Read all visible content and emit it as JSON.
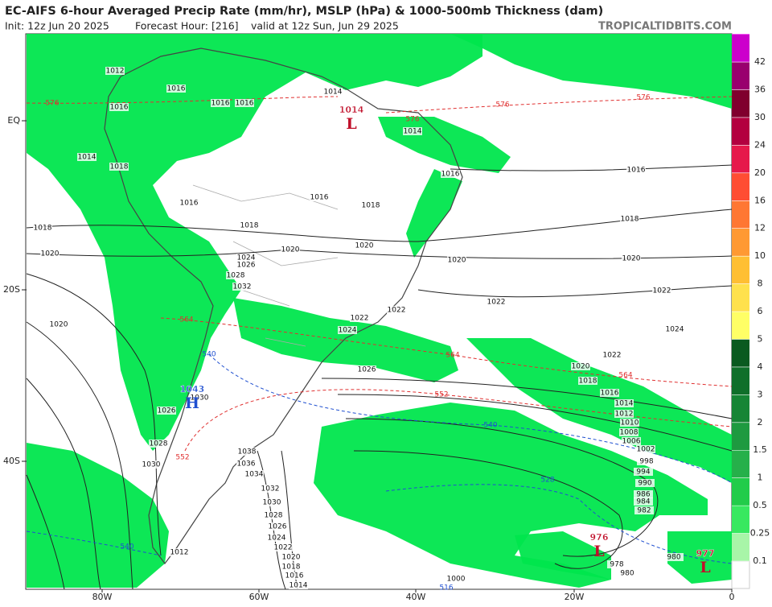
{
  "header": {
    "title": "EC-AIFS 6-hour Averaged Precip Rate (mm/hr), MSLP (hPa) & 1000-500mb Thickness (dam)",
    "init": "Init: 12z Jun 20 2025",
    "forecast_hour": "Forecast Hour: [216]",
    "valid": "valid at 12z Sun, Jun 29 2025",
    "watermark": "TROPICALTIDBITS.COM"
  },
  "map": {
    "lat_labels": [
      "EQ",
      "20S",
      "40S"
    ],
    "lon_labels": [
      "80W",
      "60W",
      "40W",
      "20W",
      "0"
    ],
    "pressure_centers": [
      {
        "letter": "L",
        "value": "1014",
        "color": "#c0102a"
      },
      {
        "letter": "H",
        "value": "1043",
        "color": "#1f4fd0"
      },
      {
        "letter": "L",
        "value": "976",
        "color": "#c0102a"
      },
      {
        "letter": "L",
        "value": "977",
        "color": "#c0102a"
      }
    ],
    "isobar_labels": [
      "1012",
      "1016",
      "1014",
      "1018",
      "1016",
      "1018",
      "1020",
      "1018",
      "1016",
      "1018",
      "1020",
      "1020",
      "1022",
      "1022",
      "1024",
      "1026",
      "1016",
      "1018",
      "1020",
      "1020",
      "1022",
      "1022",
      "1024",
      "1022",
      "1020",
      "1018",
      "1016",
      "1014",
      "1012",
      "1010",
      "1008",
      "1006",
      "1002",
      "998",
      "994",
      "990",
      "986",
      "984",
      "982",
      "980",
      "978",
      "980",
      "1038",
      "1036",
      "1034",
      "1032",
      "1030",
      "1028",
      "1026",
      "1024",
      "1022",
      "1020",
      "1018",
      "1016",
      "1014",
      "1000",
      "1012",
      "1030",
      "1028",
      "1030",
      "1026",
      "1016",
      "1016",
      "1016",
      "1014",
      "1014",
      "1016",
      "1020",
      "1024",
      "1026",
      "1028",
      "1032"
    ],
    "thickness_labels": [
      {
        "text": "576",
        "color": "#e03030"
      },
      {
        "text": "576",
        "color": "#e03030"
      },
      {
        "text": "576",
        "color": "#e03030"
      },
      {
        "text": "576",
        "color": "#e03030"
      },
      {
        "text": "564",
        "color": "#e03030"
      },
      {
        "text": "564",
        "color": "#e03030"
      },
      {
        "text": "564",
        "color": "#e03030"
      },
      {
        "text": "552",
        "color": "#e03030"
      },
      {
        "text": "552",
        "color": "#e03030"
      },
      {
        "text": "540",
        "color": "#2050d0"
      },
      {
        "text": "540",
        "color": "#2050d0"
      },
      {
        "text": "540",
        "color": "#2050d0"
      },
      {
        "text": "528",
        "color": "#2050d0"
      },
      {
        "text": "516",
        "color": "#2050d0"
      }
    ]
  },
  "colorbar": {
    "levels": [
      0.1,
      0.25,
      0.5,
      1,
      1.5,
      2,
      3,
      4,
      5,
      6,
      8,
      10,
      12,
      16,
      20,
      24,
      30,
      36,
      42
    ],
    "colors": [
      "#a8f5a8",
      "#38e860",
      "#22cc4a",
      "#26b04a",
      "#1e9a40",
      "#168535",
      "#0f6f2a",
      "#0a5a20",
      "#ffff66",
      "#ffe14d",
      "#ffbf33",
      "#ff9933",
      "#ff7733",
      "#ff4d33",
      "#e6194b",
      "#b3003f",
      "#80002e",
      "#99006e",
      "#cc00cc",
      "#ff66ff"
    ]
  }
}
